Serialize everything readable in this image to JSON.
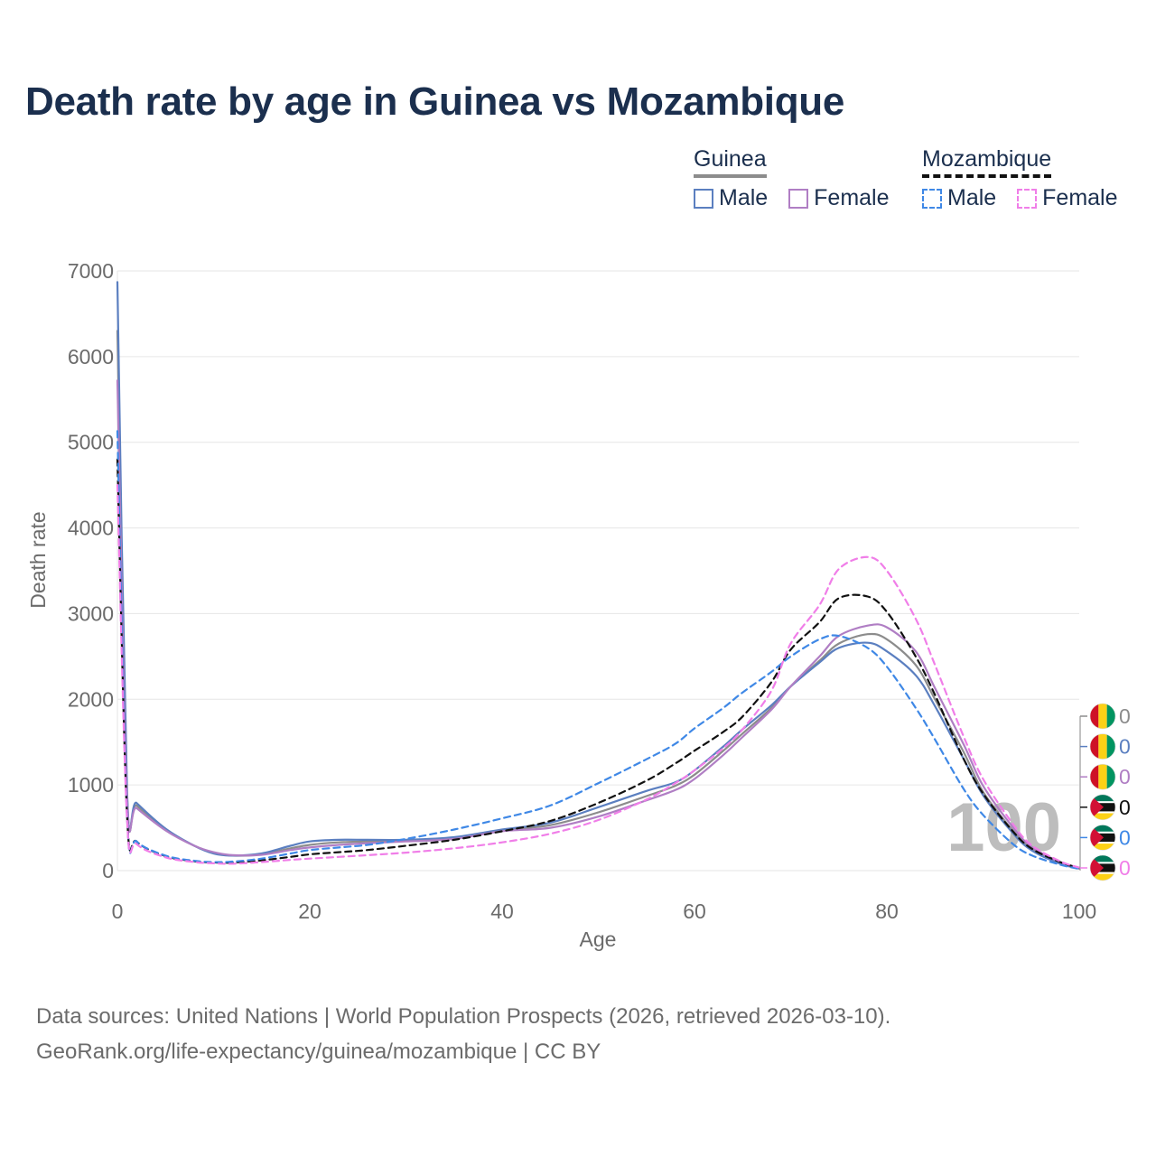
{
  "title": "Death rate by age in Guinea vs Mozambique",
  "legend": {
    "groups": [
      {
        "name": "Guinea",
        "items": [
          {
            "label": "Male",
            "color": "#5b7fc0",
            "dashed": false
          },
          {
            "label": "Female",
            "color": "#b07ec4",
            "dashed": false
          }
        ]
      },
      {
        "name": "Mozambique",
        "items": [
          {
            "label": "Male",
            "color": "#3f88e6",
            "dashed": true
          },
          {
            "label": "Female",
            "color": "#f07ee8",
            "dashed": true
          }
        ]
      }
    ]
  },
  "year_watermark": "100",
  "end_labels": [
    {
      "country": "Guinea",
      "value": "0",
      "color": "#8c8c8c"
    },
    {
      "country": "Guinea",
      "value": "0",
      "color": "#5b7fc0"
    },
    {
      "country": "Guinea",
      "value": "0",
      "color": "#b07ec4"
    },
    {
      "country": "Mozambique",
      "value": "0",
      "color": "#111111"
    },
    {
      "country": "Mozambique",
      "value": "0",
      "color": "#3f88e6"
    },
    {
      "country": "Mozambique",
      "value": "0",
      "color": "#f07ee8"
    }
  ],
  "footer": {
    "line1": "Data sources: United Nations | World Population Prospects (2026, retrieved 2026-03-10).",
    "line2": "GeoRank.org/life-expectancy/guinea/mozambique | CC BY"
  },
  "chart_data": {
    "type": "line",
    "title": "Death rate by age in Guinea vs Mozambique",
    "xlabel": "Age",
    "ylabel": "Death rate",
    "xlim": [
      0,
      100
    ],
    "ylim": [
      0,
      7000
    ],
    "xticks": [
      0,
      20,
      40,
      60,
      80,
      100
    ],
    "yticks": [
      0,
      1000,
      2000,
      3000,
      4000,
      5000,
      6000,
      7000
    ],
    "series": [
      {
        "name": "Guinea Total",
        "color": "#8c8c8c",
        "dashed": false,
        "x": [
          0,
          1,
          2,
          5,
          8,
          10,
          12,
          15,
          18,
          20,
          23,
          26,
          30,
          35,
          40,
          45,
          50,
          55,
          58,
          60,
          63,
          65,
          68,
          70,
          73,
          75,
          78,
          80,
          83,
          85,
          88,
          90,
          93,
          95,
          98,
          100
        ],
        "y": [
          6300,
          880,
          760,
          480,
          290,
          210,
          175,
          190,
          260,
          300,
          330,
          340,
          350,
          380,
          470,
          530,
          680,
          870,
          990,
          1120,
          1400,
          1600,
          1900,
          2150,
          2450,
          2650,
          2760,
          2700,
          2400,
          2000,
          1380,
          920,
          480,
          260,
          90,
          30
        ]
      },
      {
        "name": "Guinea Male",
        "color": "#5b7fc0",
        "dashed": false,
        "x": [
          0,
          1,
          2,
          5,
          8,
          10,
          12,
          15,
          18,
          20,
          23,
          26,
          30,
          35,
          40,
          45,
          50,
          55,
          58,
          60,
          63,
          65,
          68,
          70,
          73,
          75,
          78,
          80,
          83,
          85,
          88,
          90,
          93,
          95,
          98,
          100
        ],
        "y": [
          6870,
          930,
          790,
          490,
          290,
          200,
          175,
          200,
          290,
          340,
          360,
          360,
          360,
          390,
          480,
          560,
          740,
          930,
          1030,
          1170,
          1450,
          1650,
          1930,
          2150,
          2430,
          2600,
          2660,
          2560,
          2280,
          1920,
          1300,
          880,
          450,
          240,
          80,
          25
        ]
      },
      {
        "name": "Guinea Female",
        "color": "#b07ec4",
        "dashed": false,
        "x": [
          0,
          1,
          2,
          5,
          8,
          10,
          12,
          15,
          18,
          20,
          23,
          26,
          30,
          35,
          40,
          45,
          50,
          55,
          58,
          60,
          63,
          65,
          68,
          70,
          73,
          75,
          78,
          80,
          83,
          85,
          88,
          90,
          93,
          95,
          98,
          100
        ],
        "y": [
          5720,
          840,
          730,
          470,
          290,
          215,
          180,
          185,
          240,
          270,
          300,
          320,
          340,
          370,
          460,
          500,
          630,
          820,
          940,
          1070,
          1350,
          1560,
          1880,
          2150,
          2500,
          2740,
          2860,
          2840,
          2560,
          2130,
          1470,
          990,
          520,
          280,
          100,
          35
        ]
      },
      {
        "name": "Mozambique Total",
        "color": "#111111",
        "dashed": true,
        "x": [
          0,
          1,
          2,
          5,
          8,
          10,
          12,
          15,
          18,
          20,
          23,
          26,
          30,
          35,
          40,
          45,
          50,
          55,
          58,
          60,
          63,
          65,
          68,
          70,
          73,
          75,
          78,
          80,
          83,
          85,
          88,
          90,
          93,
          95,
          98,
          100
        ],
        "y": [
          4800,
          640,
          340,
          170,
          110,
          95,
          95,
          120,
          160,
          190,
          215,
          240,
          290,
          360,
          460,
          580,
          790,
          1050,
          1250,
          1400,
          1620,
          1800,
          2200,
          2580,
          2900,
          3180,
          3200,
          3020,
          2500,
          2050,
          1300,
          900,
          470,
          260,
          100,
          30
        ]
      },
      {
        "name": "Mozambique Male",
        "color": "#3f88e6",
        "dashed": true,
        "x": [
          0,
          1,
          2,
          5,
          8,
          10,
          12,
          15,
          18,
          20,
          23,
          26,
          30,
          35,
          40,
          45,
          50,
          55,
          58,
          60,
          63,
          65,
          68,
          70,
          73,
          75,
          78,
          80,
          83,
          85,
          88,
          90,
          93,
          95,
          98,
          100
        ],
        "y": [
          5130,
          630,
          340,
          175,
          115,
          100,
          105,
          140,
          200,
          240,
          270,
          300,
          370,
          480,
          610,
          760,
          1020,
          1300,
          1480,
          1660,
          1900,
          2080,
          2320,
          2500,
          2700,
          2740,
          2600,
          2380,
          1900,
          1530,
          950,
          650,
          320,
          180,
          70,
          20
        ]
      },
      {
        "name": "Mozambique Female",
        "color": "#f07ee8",
        "dashed": true,
        "x": [
          0,
          1,
          2,
          5,
          8,
          10,
          12,
          15,
          18,
          20,
          23,
          26,
          30,
          35,
          40,
          45,
          50,
          55,
          58,
          60,
          63,
          65,
          68,
          70,
          73,
          75,
          78,
          80,
          83,
          85,
          88,
          90,
          93,
          95,
          98,
          100
        ],
        "y": [
          4500,
          590,
          310,
          155,
          100,
          85,
          80,
          100,
          125,
          140,
          160,
          180,
          210,
          260,
          330,
          430,
          590,
          830,
          1020,
          1170,
          1430,
          1650,
          2100,
          2650,
          3100,
          3520,
          3660,
          3500,
          2940,
          2400,
          1560,
          1070,
          560,
          300,
          110,
          35
        ]
      }
    ]
  }
}
